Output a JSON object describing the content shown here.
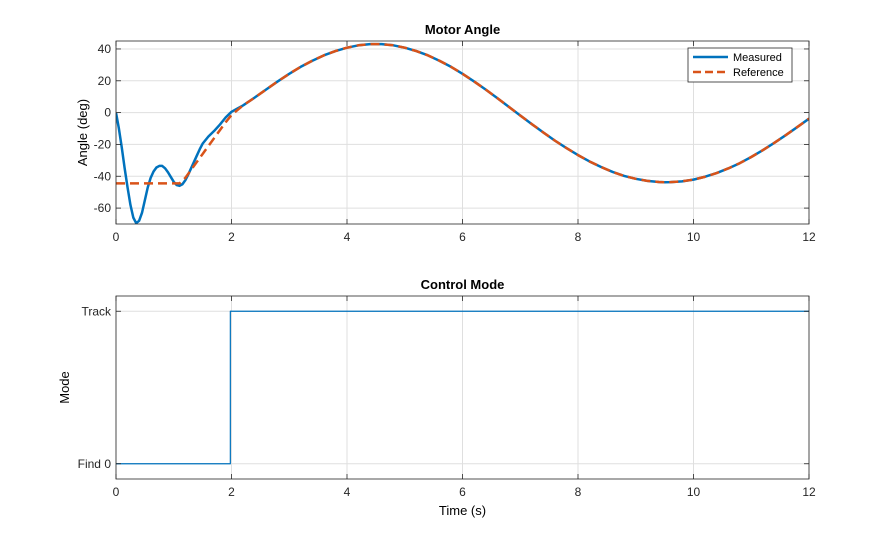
{
  "colors": {
    "measured": "#0072BD",
    "reference": "#D95319",
    "grid": "#dfdfdf",
    "axis": "#262626",
    "background": "#ffffff"
  },
  "chart_data": [
    {
      "type": "line",
      "title": "Motor Angle",
      "xlabel": "",
      "ylabel": "Angle (deg)",
      "xlim": [
        0,
        12
      ],
      "ylim": [
        -70,
        45
      ],
      "xticks": [
        0,
        2,
        4,
        6,
        8,
        10,
        12
      ],
      "yticks": [
        -60,
        -40,
        -20,
        0,
        20,
        40
      ],
      "grid": true,
      "legend_position": "top-right",
      "series": [
        {
          "name": "Measured",
          "style": "solid",
          "points": [
            [
              0,
              0
            ],
            [
              0.05,
              -10
            ],
            [
              0.1,
              -22
            ],
            [
              0.15,
              -35
            ],
            [
              0.2,
              -47
            ],
            [
              0.25,
              -58
            ],
            [
              0.3,
              -66
            ],
            [
              0.35,
              -69.5
            ],
            [
              0.4,
              -68
            ],
            [
              0.45,
              -63
            ],
            [
              0.5,
              -55
            ],
            [
              0.55,
              -47
            ],
            [
              0.6,
              -41
            ],
            [
              0.65,
              -37
            ],
            [
              0.7,
              -34.5
            ],
            [
              0.75,
              -33.5
            ],
            [
              0.8,
              -33.5
            ],
            [
              0.85,
              -35
            ],
            [
              0.9,
              -37.5
            ],
            [
              0.95,
              -40.5
            ],
            [
              1.0,
              -43.5
            ],
            [
              1.05,
              -45.5
            ],
            [
              1.1,
              -46
            ],
            [
              1.15,
              -45
            ],
            [
              1.2,
              -42.5
            ],
            [
              1.25,
              -39
            ],
            [
              1.3,
              -35
            ],
            [
              1.35,
              -31
            ],
            [
              1.4,
              -27
            ],
            [
              1.45,
              -23
            ],
            [
              1.5,
              -19.5
            ],
            [
              1.6,
              -15
            ],
            [
              1.7,
              -11.5
            ],
            [
              1.8,
              -7.5
            ],
            [
              1.9,
              -3
            ],
            [
              2.0,
              0.5
            ],
            [
              2.1,
              2.5
            ],
            [
              2.2,
              4.5
            ],
            [
              2.4,
              9.4
            ],
            [
              2.6,
              14.5
            ],
            [
              2.8,
              19.6
            ],
            [
              3.0,
              24.4
            ],
            [
              3.2,
              28.8
            ],
            [
              3.4,
              32.6
            ],
            [
              3.6,
              36.0
            ],
            [
              3.8,
              38.7
            ],
            [
              4.0,
              40.8
            ],
            [
              4.2,
              42.3
            ],
            [
              4.4,
              43.0
            ],
            [
              4.6,
              43.0
            ],
            [
              4.8,
              42.3
            ],
            [
              5.0,
              40.8
            ],
            [
              5.2,
              38.7
            ],
            [
              5.4,
              36.0
            ],
            [
              5.6,
              32.6
            ],
            [
              5.8,
              28.8
            ],
            [
              6.0,
              24.4
            ],
            [
              6.2,
              19.6
            ],
            [
              6.4,
              14.5
            ],
            [
              6.6,
              9.2
            ],
            [
              6.8,
              3.7
            ],
            [
              7.0,
              -1.8
            ],
            [
              7.2,
              -7.2
            ],
            [
              7.4,
              -12.5
            ],
            [
              7.6,
              -17.6
            ],
            [
              7.8,
              -22.3
            ],
            [
              8.0,
              -26.7
            ],
            [
              8.2,
              -30.7
            ],
            [
              8.4,
              -34.2
            ],
            [
              8.6,
              -37.3
            ],
            [
              8.8,
              -39.8
            ],
            [
              9.0,
              -41.6
            ],
            [
              9.2,
              -42.9
            ],
            [
              9.4,
              -43.6
            ],
            [
              9.5,
              -43.8
            ],
            [
              9.6,
              -43.7
            ],
            [
              9.8,
              -43.2
            ],
            [
              10.0,
              -42.1
            ],
            [
              10.2,
              -40.3
            ],
            [
              10.4,
              -38.0
            ],
            [
              10.6,
              -35.1
            ],
            [
              10.8,
              -31.8
            ],
            [
              11.0,
              -27.9
            ],
            [
              11.2,
              -23.6
            ],
            [
              11.4,
              -19.0
            ],
            [
              11.6,
              -14.1
            ],
            [
              11.8,
              -9.0
            ],
            [
              12.0,
              -3.8
            ]
          ]
        },
        {
          "name": "Reference",
          "style": "dashed",
          "points": [
            [
              0,
              -44.5
            ],
            [
              0.2,
              -44.5
            ],
            [
              0.4,
              -44.5
            ],
            [
              0.6,
              -44.5
            ],
            [
              0.8,
              -44.5
            ],
            [
              1.0,
              -44.5
            ],
            [
              1.1,
              -44.5
            ],
            [
              1.2,
              -41
            ],
            [
              1.3,
              -36
            ],
            [
              1.4,
              -31
            ],
            [
              1.5,
              -26
            ],
            [
              1.6,
              -21
            ],
            [
              1.7,
              -16
            ],
            [
              1.8,
              -11
            ],
            [
              1.9,
              -6
            ],
            [
              2.0,
              -1.5
            ],
            [
              2.1,
              1.5
            ],
            [
              2.2,
              4.5
            ],
            [
              2.4,
              9.4
            ],
            [
              2.6,
              14.5
            ],
            [
              2.8,
              19.6
            ],
            [
              3.0,
              24.4
            ],
            [
              3.2,
              28.8
            ],
            [
              3.4,
              32.6
            ],
            [
              3.6,
              36.0
            ],
            [
              3.8,
              38.7
            ],
            [
              4.0,
              40.8
            ],
            [
              4.2,
              42.3
            ],
            [
              4.4,
              43.0
            ],
            [
              4.6,
              43.0
            ],
            [
              4.8,
              42.3
            ],
            [
              5.0,
              40.8
            ],
            [
              5.2,
              38.7
            ],
            [
              5.4,
              36.0
            ],
            [
              5.6,
              32.6
            ],
            [
              5.8,
              28.8
            ],
            [
              6.0,
              24.4
            ],
            [
              6.2,
              19.6
            ],
            [
              6.4,
              14.5
            ],
            [
              6.6,
              9.2
            ],
            [
              6.8,
              3.7
            ],
            [
              7.0,
              -1.8
            ],
            [
              7.2,
              -7.2
            ],
            [
              7.4,
              -12.5
            ],
            [
              7.6,
              -17.6
            ],
            [
              7.8,
              -22.3
            ],
            [
              8.0,
              -26.7
            ],
            [
              8.2,
              -30.7
            ],
            [
              8.4,
              -34.2
            ],
            [
              8.6,
              -37.3
            ],
            [
              8.8,
              -39.8
            ],
            [
              9.0,
              -41.6
            ],
            [
              9.2,
              -42.9
            ],
            [
              9.4,
              -43.6
            ],
            [
              9.5,
              -43.8
            ],
            [
              9.6,
              -43.7
            ],
            [
              9.8,
              -43.2
            ],
            [
              10.0,
              -42.1
            ],
            [
              10.2,
              -40.3
            ],
            [
              10.4,
              -38.0
            ],
            [
              10.6,
              -35.1
            ],
            [
              10.8,
              -31.8
            ],
            [
              11.0,
              -27.9
            ],
            [
              11.2,
              -23.6
            ],
            [
              11.4,
              -19.0
            ],
            [
              11.6,
              -14.1
            ],
            [
              11.8,
              -9.0
            ],
            [
              12.0,
              -3.8
            ]
          ]
        }
      ]
    },
    {
      "type": "line",
      "title": "Control Mode",
      "xlabel": "Time (s)",
      "ylabel": "Mode",
      "xlim": [
        0,
        12
      ],
      "ylim": [
        -0.1,
        1.1
      ],
      "xticks": [
        0,
        2,
        4,
        6,
        8,
        10,
        12
      ],
      "yticks": [
        {
          "value": 0,
          "label": "Find 0"
        },
        {
          "value": 1,
          "label": "Track"
        }
      ],
      "grid": true,
      "series": [
        {
          "style": "step",
          "points": [
            [
              0,
              0
            ],
            [
              1.98,
              0
            ],
            [
              1.98,
              1
            ],
            [
              12,
              1
            ]
          ]
        }
      ]
    }
  ]
}
